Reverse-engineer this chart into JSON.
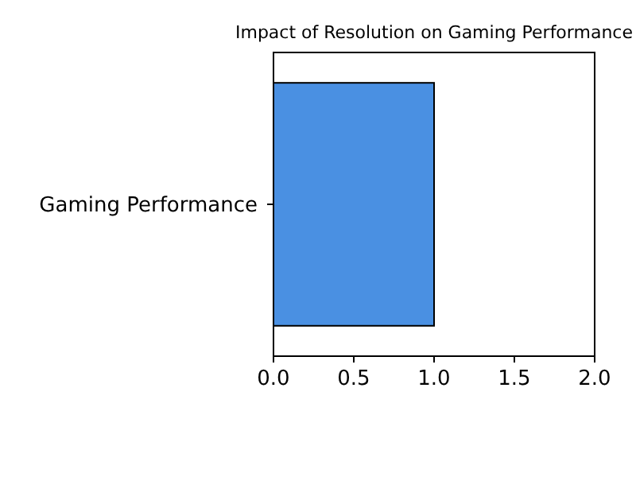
{
  "chart_data": {
    "type": "bar",
    "orientation": "horizontal",
    "title": "Impact of Resolution on Gaming Performance",
    "categories": [
      "Gaming Performance"
    ],
    "values": [
      1.0
    ],
    "color": "#4a90e2",
    "xlim": [
      0,
      2
    ],
    "xticks": [
      {
        "value": 0,
        "label": "0.0"
      },
      {
        "value": 0.5,
        "label": "0.5"
      },
      {
        "value": 1,
        "label": "1.0"
      },
      {
        "value": 1.5,
        "label": "1.5"
      },
      {
        "value": 2,
        "label": "2.0"
      }
    ],
    "grid": false
  }
}
